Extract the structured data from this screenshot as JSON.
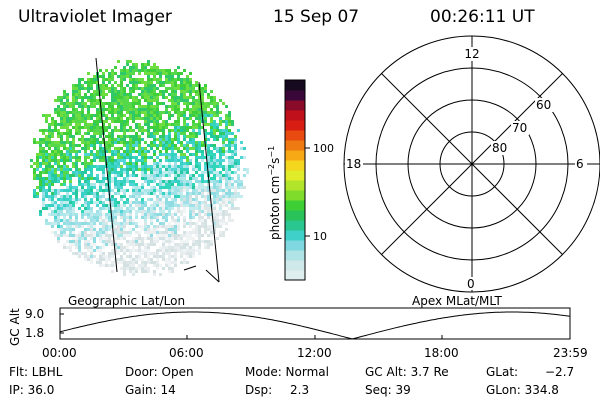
{
  "header": {
    "instrument": "Ultraviolet Imager",
    "date": "15 Sep 07",
    "time": "00:26:11 UT"
  },
  "colorbar": {
    "unit_label": "photon cm",
    "unit_exp1": "−2",
    "unit_mid": "s",
    "unit_exp2": "−1",
    "ticks": [
      "100",
      "10"
    ],
    "colors": [
      "#dfeeef",
      "#cfe8ea",
      "#b0e3e6",
      "#7fd8df",
      "#3fd0c9",
      "#2ac68f",
      "#29c35a",
      "#3ecf35",
      "#7fdc2a",
      "#b2e52a",
      "#e0ec2a",
      "#f5d61e",
      "#f6a815",
      "#f07a12",
      "#e84a10",
      "#d81e12",
      "#c0101c",
      "#8a0a2a",
      "#3a0838",
      "#150a20"
    ]
  },
  "left_panel": {
    "caption": "Geographic Lat/Lon"
  },
  "polar": {
    "caption": "Apex MLat/MLT",
    "mlt_labels": {
      "top": "12",
      "left": "18",
      "right": "6",
      "bottom": "0"
    },
    "lat_labels": [
      "60",
      "70",
      "80"
    ]
  },
  "gc_plot": {
    "ylabel": "GC Alt",
    "yticks": [
      "9.0",
      "1.8"
    ],
    "xticks": [
      "00:00",
      "06:00",
      "12:00",
      "18:00",
      "23:59"
    ]
  },
  "status": {
    "flt": "Flt: LBHL",
    "door": "Door: Open",
    "mode": "Mode: Normal",
    "gc_alt": "GC Alt: 3.7 Re",
    "glat_label": "GLat:",
    "glat_value": "−2.7",
    "ip": "IP: 36.0",
    "gain": "Gain: 14",
    "dsp_label": "Dsp:",
    "dsp_value": "2.3",
    "seq": "Seq: 39",
    "glon": "GLon: 334.8"
  },
  "accent_colors": {
    "green": "#3fcf3a",
    "teal": "#38cfc4",
    "cyan_light": "#aee7ea",
    "gray_light": "#dde6e7"
  }
}
